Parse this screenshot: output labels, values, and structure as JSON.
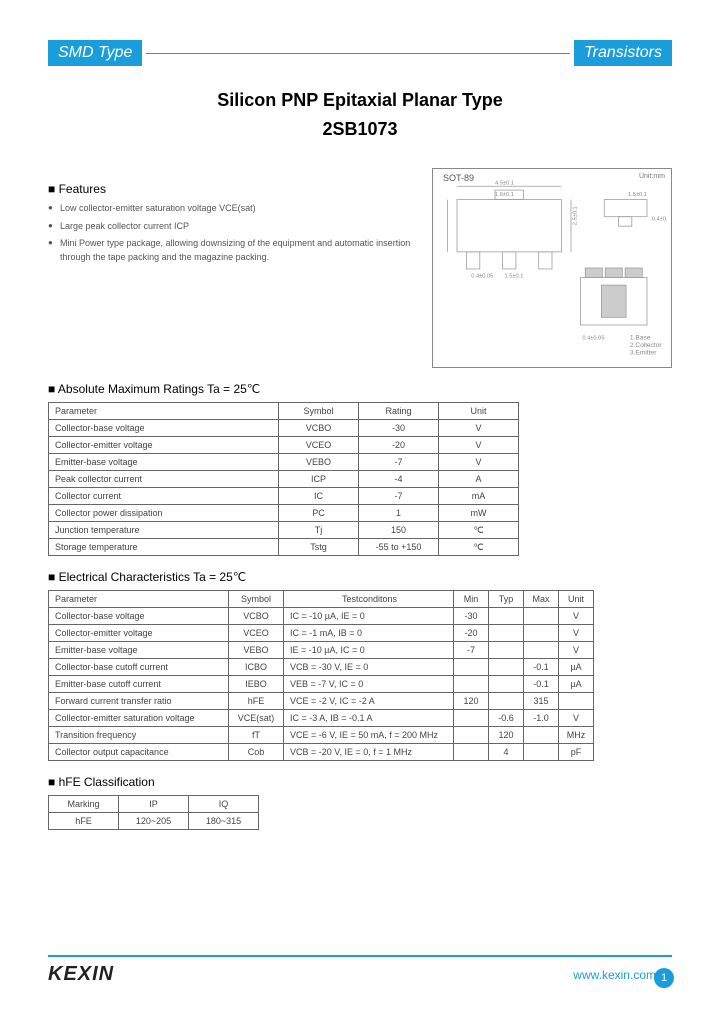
{
  "banner": {
    "left": "SMD Type",
    "right": "Transistors"
  },
  "title": "Silicon PNP Epitaxial Planar Type",
  "part_number": "2SB1073",
  "sections": {
    "features": "Features",
    "abs_max": "Absolute Maximum Ratings Ta = 25℃",
    "elec": "Electrical Characteristics Ta = 25℃",
    "hfe": "hFE Classification"
  },
  "features": [
    "Low collector-emitter saturation voltage VCE(sat)",
    "Large peak collector current ICP",
    "Mini Power type package, allowing downsizing of the equipment and automatic insertion through the tape packing and the magazine packing."
  ],
  "diagram": {
    "package": "SOT-89",
    "unit": "Unit:mm",
    "pins": [
      "1.Base",
      "2.Collector",
      "3.Emitter"
    ]
  },
  "abs_max": {
    "headers": [
      "Parameter",
      "Symbol",
      "Rating",
      "Unit"
    ],
    "rows": [
      [
        "Collector-base voltage",
        "VCBO",
        "-30",
        "V"
      ],
      [
        "Collector-emitter voltage",
        "VCEO",
        "-20",
        "V"
      ],
      [
        "Emitter-base voltage",
        "VEBO",
        "-7",
        "V"
      ],
      [
        "Peak collector current",
        "ICP",
        "-4",
        "A"
      ],
      [
        "Collector current",
        "IC",
        "-7",
        "mA"
      ],
      [
        "Collector power dissipation",
        "PC",
        "1",
        "mW"
      ],
      [
        "Junction temperature",
        "Tj",
        "150",
        "℃"
      ],
      [
        "Storage temperature",
        "Tstg",
        "-55 to +150",
        "℃"
      ]
    ]
  },
  "elec": {
    "headers": [
      "Parameter",
      "Symbol",
      "Testconditons",
      "Min",
      "Typ",
      "Max",
      "Unit"
    ],
    "rows": [
      [
        "Collector-base voltage",
        "VCBO",
        "IC = -10 µA, IE = 0",
        "-30",
        "",
        "",
        "V"
      ],
      [
        "Collector-emitter voltage",
        "VCEO",
        "IC = -1 mA, IB = 0",
        "-20",
        "",
        "",
        "V"
      ],
      [
        "Emitter-base voltage",
        "VEBO",
        "IE = -10 µA, IC = 0",
        "-7",
        "",
        "",
        "V"
      ],
      [
        "Collector-base cutoff current",
        "ICBO",
        "VCB = -30 V, IE = 0",
        "",
        "",
        "-0.1",
        "µA"
      ],
      [
        "Emitter-base cutoff current",
        "IEBO",
        "VEB = -7 V, IC = 0",
        "",
        "",
        "-0.1",
        "µA"
      ],
      [
        "Forward current transfer ratio",
        "hFE",
        "VCE = -2 V, IC = -2 A",
        "120",
        "",
        "315",
        ""
      ],
      [
        "Collector-emitter saturation voltage",
        "VCE(sat)",
        "IC = -3 A, IB = -0.1 A",
        "",
        "-0.6",
        "-1.0",
        "V"
      ],
      [
        "Transition frequency",
        "fT",
        "VCE = -6 V, IE = 50 mA, f = 200 MHz",
        "",
        "120",
        "",
        "MHz"
      ],
      [
        "Collector output capacitance",
        "Cob",
        "VCB = -20 V, IE = 0, f = 1 MHz",
        "",
        "4",
        "",
        "pF"
      ]
    ]
  },
  "hfe": {
    "headers": [
      "Marking",
      "IP",
      "IQ"
    ],
    "rows": [
      [
        "hFE",
        "120~205",
        "180~315"
      ]
    ]
  },
  "footer": {
    "logo": "KEXIN",
    "url": "www.kexin.com.cn",
    "page": "1"
  },
  "colors": {
    "accent": "#1a9ddb",
    "text_muted": "#555",
    "border": "#666"
  }
}
